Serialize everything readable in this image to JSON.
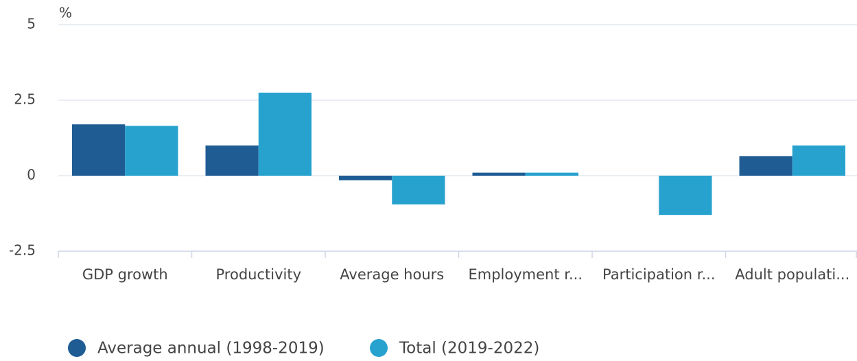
{
  "chart_data": {
    "type": "bar",
    "y_label": "%",
    "categories": [
      "GDP growth",
      "Productivity",
      "Average hours",
      "Employment r...",
      "Participation r...",
      "Adult populati..."
    ],
    "series": [
      {
        "name": "Average annual (1998-2019)",
        "color": "#1f5c94",
        "values": [
          1.7,
          1.0,
          -0.15,
          0.1,
          0,
          0.65
        ]
      },
      {
        "name": "Total (2019-2022)",
        "color": "#27a2cf",
        "values": [
          1.65,
          2.75,
          -0.95,
          0.1,
          -1.3,
          1.0
        ]
      }
    ],
    "ylim": [
      -2.5,
      5
    ],
    "yticks": [
      -2.5,
      0,
      2.5,
      5
    ],
    "grid": true
  }
}
